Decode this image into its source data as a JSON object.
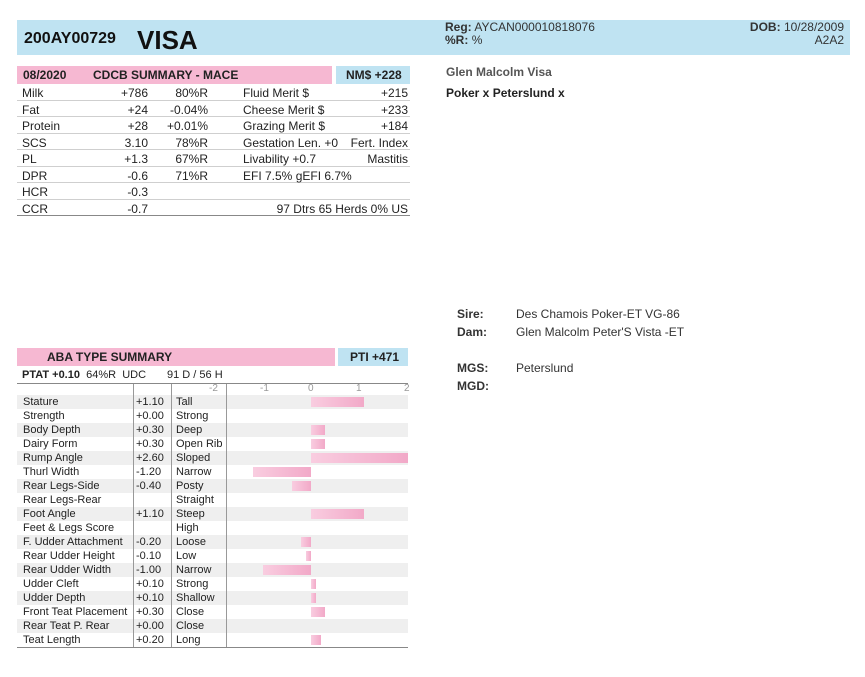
{
  "header": {
    "id": "200AY00729",
    "name": "VISA",
    "reg_label": "Reg:",
    "reg_value": "AYCAN000010818076",
    "r_label": "%R:",
    "r_value": "%",
    "dob_label": "DOB:",
    "dob_value": "10/28/2009",
    "genotype": "A2A2"
  },
  "cow": {
    "full_name": "Glen Malcolm Visa",
    "pedigree_line": "Poker x Peterslund x"
  },
  "cdcb": {
    "date": "08/2020",
    "title": "CDCB SUMMARY - MACE",
    "nm": "NM$ +228",
    "rows": [
      {
        "l": "Milk",
        "v": "+786",
        "r": "80%R",
        "m": "Fluid Merit $",
        "mv": "+215"
      },
      {
        "l": "Fat",
        "v": "+24",
        "r": "-0.04%",
        "m": "Cheese Merit $",
        "mv": "+233"
      },
      {
        "l": "Protein",
        "v": "+28",
        "r": "+0.01%",
        "m": "Grazing Merit $",
        "mv": "+184"
      },
      {
        "l": "SCS",
        "v": "3.10",
        "r": "78%R",
        "m": "Gestation Len. +0",
        "mv": "Fert. Index"
      },
      {
        "l": "PL",
        "v": "+1.3",
        "r": "67%R",
        "m": "Livability   +0.7",
        "mv": "Mastitis"
      },
      {
        "l": "DPR",
        "v": "-0.6",
        "r": "71%R",
        "m": " EFI  7.5%  gEFI  6.7%",
        "mv": ""
      },
      {
        "l": "HCR",
        "v": "-0.3",
        "r": "",
        "m": "",
        "mv": ""
      },
      {
        "l": "CCR",
        "v": "-0.7",
        "r": "",
        "m": "",
        "mv": "97 Dtrs   65 Herds   0% US"
      }
    ]
  },
  "pedigree": {
    "sire_label": "Sire:",
    "sire_value": "Des Chamois Poker-ET VG-86",
    "dam_label": "Dam:",
    "dam_value": "Glen Malcolm Peter'S Vista -ET",
    "mgs_label": "MGS:",
    "mgs_value": "Peterslund",
    "mgd_label": "MGD:",
    "mgd_value": ""
  },
  "aba": {
    "title": "ABA TYPE SUMMARY",
    "pti": "PTI +471",
    "ptat_label": "PTAT +0.10",
    "ptat_rel": "64%R",
    "ptat_src": "UDC",
    "daughters_herds": "91 D / 56 H",
    "scale": [
      "-2",
      "-1",
      "0",
      "1",
      "2"
    ],
    "traits": [
      {
        "name": "Stature",
        "value": "+1.10",
        "num": 1.1,
        "desc": "Tall"
      },
      {
        "name": "Strength",
        "value": "+0.00",
        "num": 0.0,
        "desc": "Strong"
      },
      {
        "name": "Body Depth",
        "value": "+0.30",
        "num": 0.3,
        "desc": "Deep"
      },
      {
        "name": "Dairy Form",
        "value": "+0.30",
        "num": 0.3,
        "desc": "Open Rib"
      },
      {
        "name": "Rump Angle",
        "value": "+2.60",
        "num": 2.6,
        "desc": "Sloped"
      },
      {
        "name": "Thurl Width",
        "value": "-1.20",
        "num": -1.2,
        "desc": "Narrow"
      },
      {
        "name": "Rear Legs-Side",
        "value": "-0.40",
        "num": -0.4,
        "desc": "Posty"
      },
      {
        "name": "Rear Legs-Rear",
        "value": "",
        "num": 0,
        "desc": "Straight"
      },
      {
        "name": "Foot Angle",
        "value": "+1.10",
        "num": 1.1,
        "desc": "Steep"
      },
      {
        "name": "Feet & Legs Score",
        "value": "",
        "num": 0,
        "desc": "High"
      },
      {
        "name": "F. Udder Attachment",
        "value": "-0.20",
        "num": -0.2,
        "desc": "Loose"
      },
      {
        "name": "Rear Udder Height",
        "value": "-0.10",
        "num": -0.1,
        "desc": "Low"
      },
      {
        "name": "Rear Udder Width",
        "value": "-1.00",
        "num": -1.0,
        "desc": "Narrow"
      },
      {
        "name": "Udder Cleft",
        "value": "+0.10",
        "num": 0.1,
        "desc": "Strong"
      },
      {
        "name": "Udder Depth",
        "value": "+0.10",
        "num": 0.1,
        "desc": "Shallow"
      },
      {
        "name": "Front Teat Placement",
        "value": "+0.30",
        "num": 0.3,
        "desc": "Close"
      },
      {
        "name": "Rear Teat P. Rear",
        "value": "+0.00",
        "num": 0.0,
        "desc": "Close"
      },
      {
        "name": "Teat Length",
        "value": "+0.20",
        "num": 0.2,
        "desc": "Long"
      }
    ]
  },
  "colors": {
    "header_blue": "#bfe3f2",
    "summary_pink": "#f6b8d2",
    "bar_pink": "#f2a9c8",
    "row_shade": "#efefef"
  }
}
